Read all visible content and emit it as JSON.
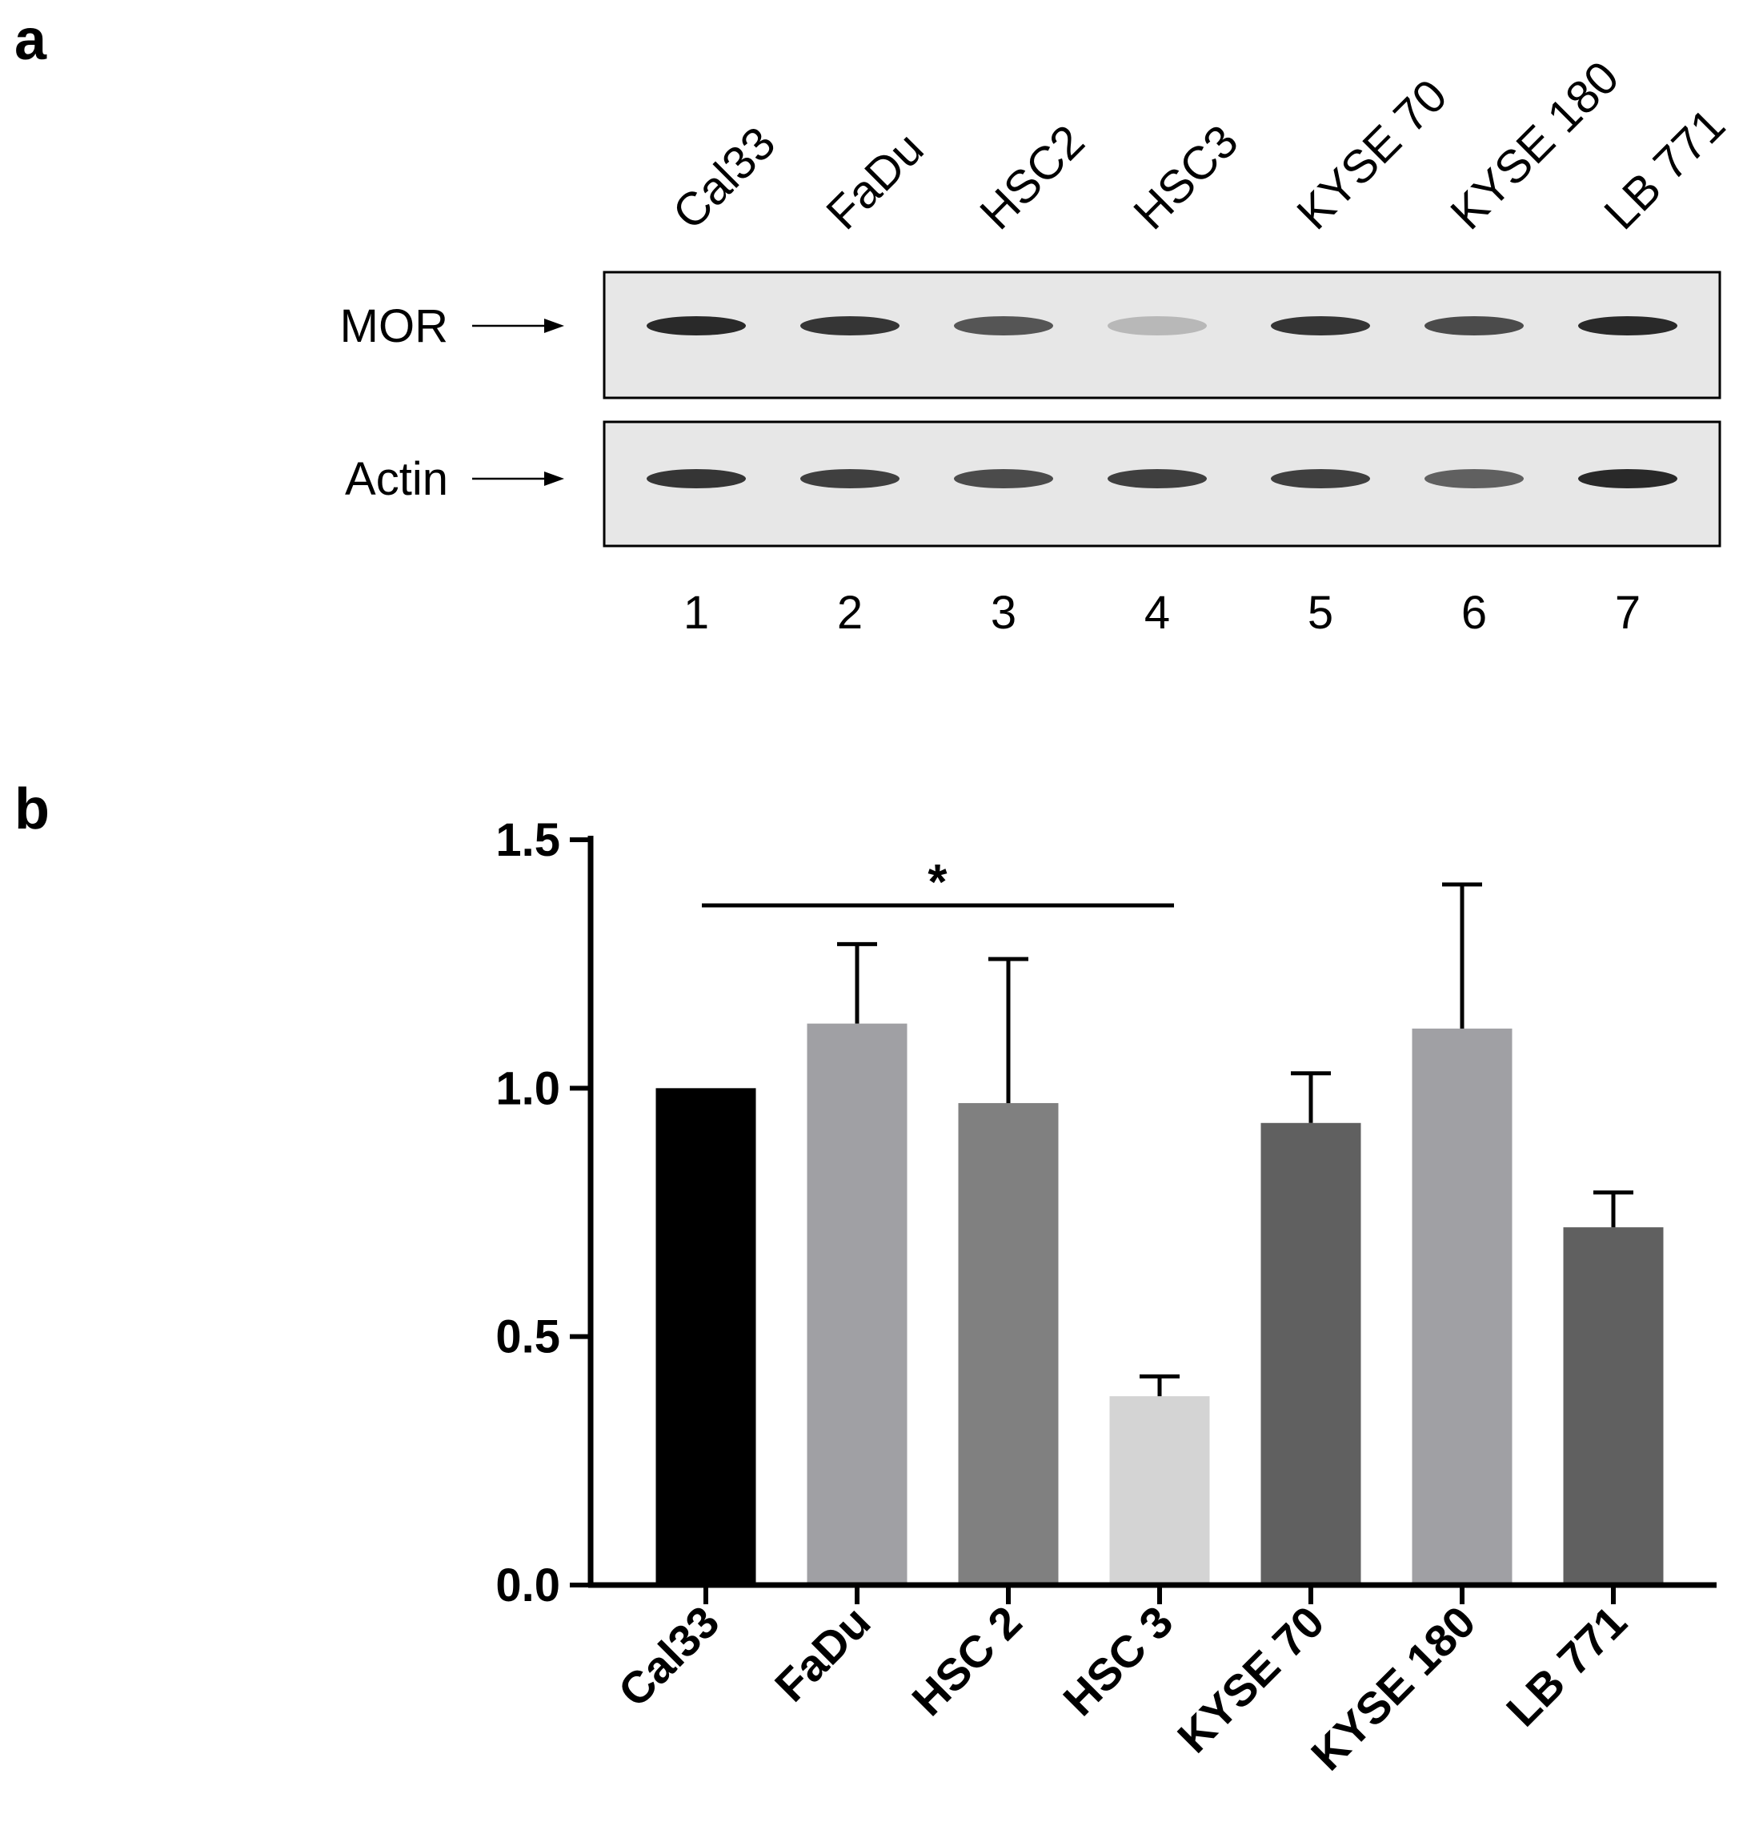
{
  "panel_a": {
    "letter": "a",
    "lane_names": [
      "Cal33",
      "FaDu",
      "HSC2",
      "HSC3",
      "KYSE 70",
      "KYSE 180",
      "LB 771"
    ],
    "lane_numbers": [
      "1",
      "2",
      "3",
      "4",
      "5",
      "6",
      "7"
    ],
    "blots": [
      {
        "label": "MOR",
        "band_intensity": [
          0.95,
          0.9,
          0.75,
          0.3,
          0.9,
          0.8,
          0.95
        ]
      },
      {
        "label": "Actin",
        "band_intensity": [
          0.9,
          0.85,
          0.8,
          0.85,
          0.85,
          0.7,
          0.95
        ]
      }
    ]
  },
  "panel_b": {
    "letter": "b",
    "significance": {
      "label": "*",
      "from": "Cal33",
      "to": "HSC 3"
    }
  },
  "chart_data": {
    "type": "bar",
    "categories": [
      "Cal33",
      "FaDu",
      "HSC 2",
      "HSC 3",
      "KYSE 70",
      "KYSE 180",
      "LB 771"
    ],
    "values": [
      1.0,
      1.13,
      0.97,
      0.38,
      0.93,
      1.12,
      0.72
    ],
    "error_upper": [
      0.0,
      1.29,
      1.26,
      0.42,
      1.03,
      1.41,
      0.79
    ],
    "bar_colors": [
      "#000000",
      "#a0a0a4",
      "#808080",
      "#d4d4d4",
      "#606060",
      "#a0a0a4",
      "#606060"
    ],
    "ylim": [
      0,
      1.5
    ],
    "yticks": [
      "0.0",
      "0.5",
      "1.0",
      "1.5"
    ],
    "ytick_values": [
      0,
      0.5,
      1.0,
      1.5
    ],
    "title": "",
    "xlabel": "",
    "ylabel": "",
    "grid": false,
    "legend": "none"
  }
}
